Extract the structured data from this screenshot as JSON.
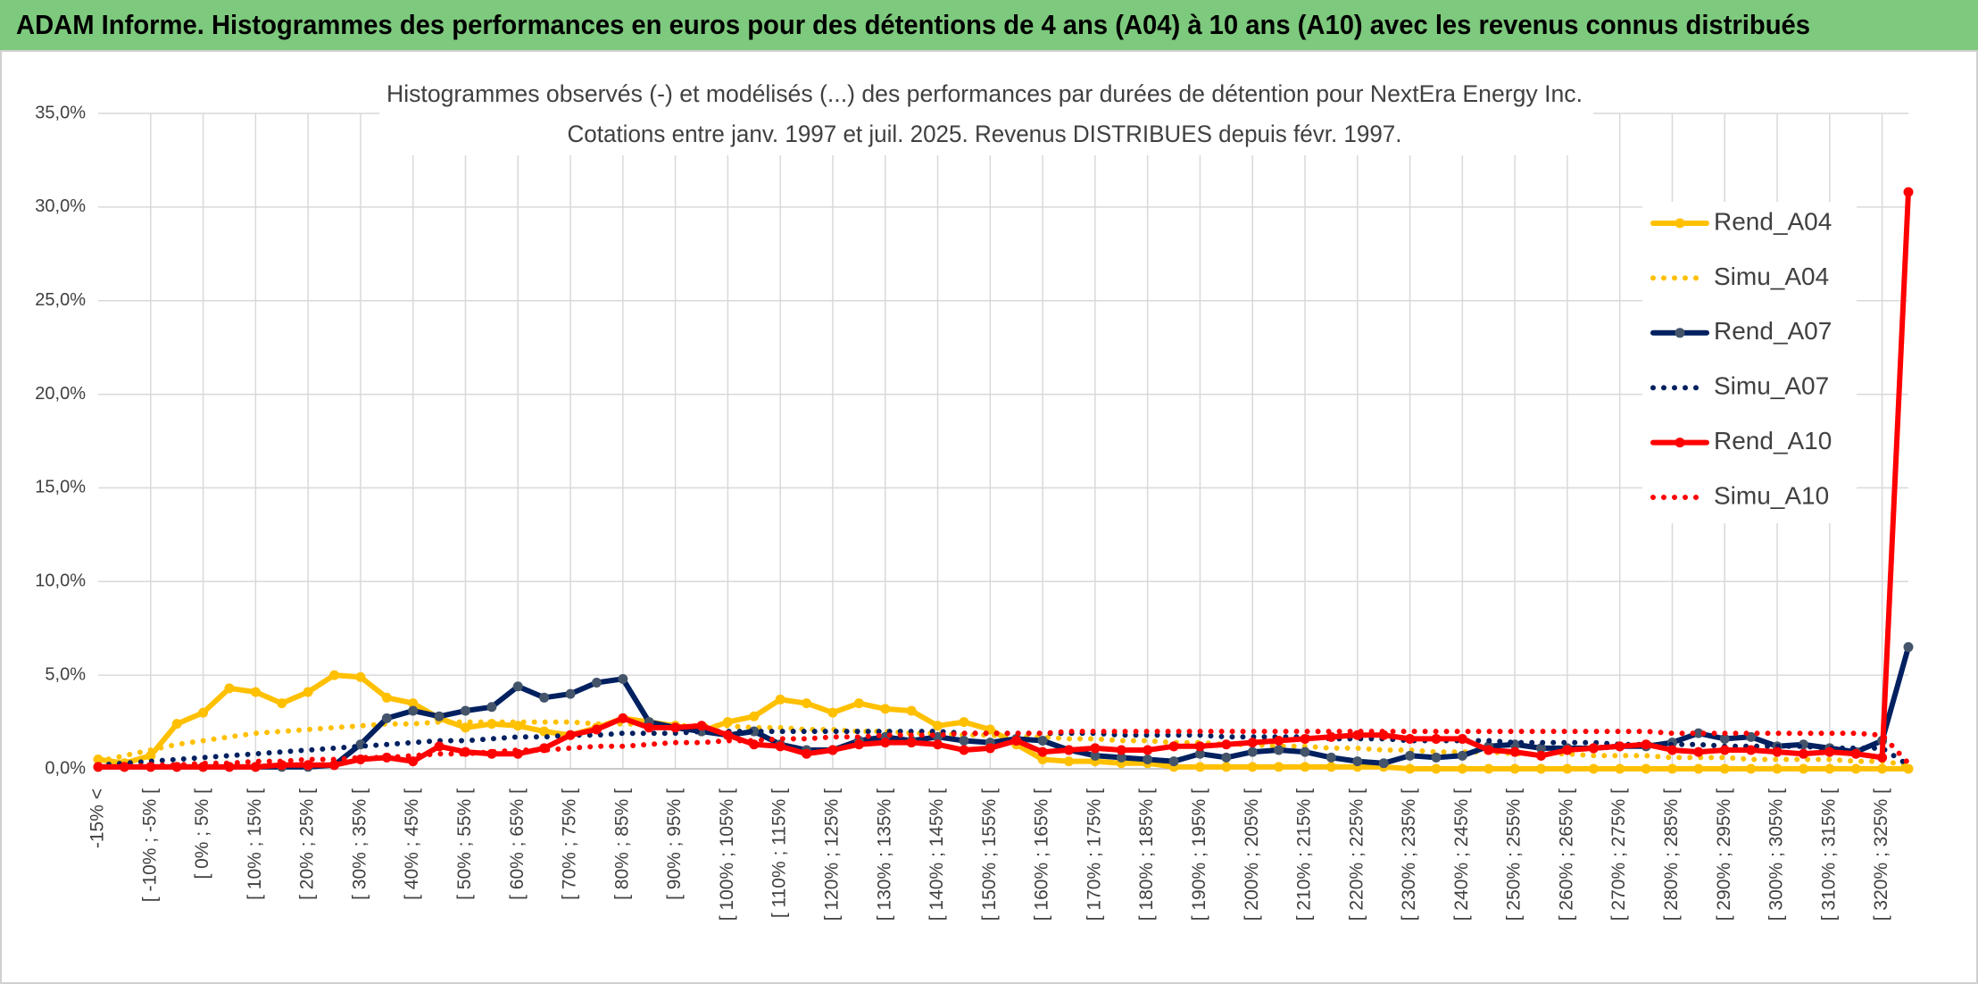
{
  "header": {
    "title": "ADAM Informe. Histogrammes des performances en euros pour des détentions de 4 ans (A04) à 10 ans (A10) avec les revenus connus distribués"
  },
  "chart_data": {
    "type": "line",
    "title": "Histogrammes observés (-) et modélisés (...) des performances par durées de détention pour NextEra Energy Inc.",
    "subtitle": "Cotations entre janv. 1997 et juil. 2025. Revenus DISTRIBUES depuis févr. 1997.",
    "categories": [
      "-15% <",
      null,
      "[ -10% ; -5% [",
      null,
      "[ 0% ; 5% [",
      null,
      "[ 10% ; 15% [",
      null,
      "[ 20% ; 25% [",
      null,
      "[ 30% ; 35% [",
      null,
      "[ 40% ; 45% [",
      null,
      "[ 50% ; 55% [",
      null,
      "[ 60% ; 65% [",
      null,
      "[ 70% ; 75% [",
      null,
      "[ 80% ; 85% [",
      null,
      "[ 90% ; 95% [",
      null,
      "[ 100% ; 105% [",
      null,
      "[ 110% ; 115% [",
      null,
      "[ 120% ; 125% [",
      null,
      "[ 130% ; 135% [",
      null,
      "[ 140% ; 145% [",
      null,
      "[ 150% ; 155% [",
      null,
      "[ 160% ; 165% [",
      null,
      "[ 170% ; 175% [",
      null,
      "[ 180% ; 185% [",
      null,
      "[ 190% ; 195% [",
      null,
      "[ 200% ; 205% [",
      null,
      "[ 210% ; 215% [",
      null,
      "[ 220% ; 225% [",
      null,
      "[ 230% ; 235% [",
      null,
      "[ 240% ; 245% [",
      null,
      "[ 250% ; 255% [",
      null,
      "[ 260% ; 265% [",
      null,
      "[ 270% ; 275% [",
      null,
      "[ 280% ; 285% [",
      null,
      "[ 290% ; 295% [",
      null,
      "[ 300% ; 305% [",
      null,
      "[ 310% ; 315% [",
      null,
      "[ 320% ; 325% [",
      null
    ],
    "series": [
      {
        "name": "Rend_A04",
        "color": "#FFC000",
        "line_style": "solid",
        "marker": true,
        "values": [
          0.5,
          0.3,
          0.7,
          2.4,
          3.0,
          4.3,
          4.1,
          3.5,
          4.1,
          5.0,
          4.9,
          3.8,
          3.5,
          2.7,
          2.2,
          2.4,
          2.3,
          2.0,
          1.8,
          2.2,
          2.7,
          2.5,
          2.3,
          2.0,
          2.5,
          2.8,
          3.7,
          3.5,
          3.0,
          3.5,
          3.2,
          3.1,
          2.3,
          2.5,
          2.1,
          1.3,
          0.5,
          0.4,
          0.4,
          0.3,
          0.3,
          0.1,
          0.1,
          0.1,
          0.1,
          0.1,
          0.1,
          0.1,
          0.1,
          0.1,
          0,
          0,
          0,
          0,
          0,
          0,
          0,
          0,
          0,
          0,
          0,
          0,
          0,
          0,
          0,
          0,
          0,
          0,
          0,
          0
        ]
      },
      {
        "name": "Simu_A04",
        "color": "#FFC000",
        "line_style": "dotted",
        "marker": false,
        "values": [
          0.4,
          0.7,
          1.0,
          1.3,
          1.5,
          1.7,
          1.9,
          2.0,
          2.1,
          2.2,
          2.3,
          2.4,
          2.4,
          2.5,
          2.5,
          2.5,
          2.5,
          2.5,
          2.5,
          2.4,
          2.4,
          2.4,
          2.3,
          2.3,
          2.3,
          2.2,
          2.2,
          2.1,
          2.1,
          2.0,
          2.0,
          1.9,
          1.9,
          1.8,
          1.8,
          1.7,
          1.7,
          1.6,
          1.6,
          1.5,
          1.5,
          1.4,
          1.4,
          1.3,
          1.3,
          1.2,
          1.2,
          1.1,
          1.1,
          1.0,
          1.0,
          0.9,
          0.9,
          0.9,
          0.8,
          0.8,
          0.8,
          0.7,
          0.7,
          0.7,
          0.6,
          0.6,
          0.6,
          0.5,
          0.5,
          0.5,
          0.5,
          0.4,
          0.4,
          0.2
        ]
      },
      {
        "name": "Rend_A07",
        "color": "#002060",
        "line_style": "solid",
        "marker": true,
        "values": [
          0.1,
          0.1,
          0.1,
          0.1,
          0.1,
          0.1,
          0.1,
          0.1,
          0.1,
          0.2,
          1.3,
          2.7,
          3.1,
          2.8,
          3.1,
          3.3,
          4.4,
          3.8,
          4.0,
          4.6,
          4.8,
          2.5,
          2.2,
          2.0,
          1.8,
          2.0,
          1.3,
          1.0,
          1.0,
          1.5,
          1.7,
          1.5,
          1.7,
          1.5,
          1.4,
          1.6,
          1.5,
          1.0,
          0.7,
          0.6,
          0.5,
          0.4,
          0.8,
          0.6,
          0.9,
          1.0,
          0.9,
          0.6,
          0.4,
          0.3,
          0.7,
          0.6,
          0.7,
          1.2,
          1.3,
          1.1,
          1.1,
          1.1,
          1.2,
          1.2,
          1.4,
          1.9,
          1.6,
          1.7,
          1.2,
          1.3,
          1.1,
          0.9,
          1.5,
          6.5
        ]
      },
      {
        "name": "Simu_A07",
        "color": "#002060",
        "line_style": "dotted",
        "marker": false,
        "values": [
          0.2,
          0.3,
          0.4,
          0.5,
          0.6,
          0.7,
          0.8,
          0.9,
          1.0,
          1.1,
          1.2,
          1.3,
          1.4,
          1.5,
          1.5,
          1.6,
          1.7,
          1.7,
          1.8,
          1.8,
          1.9,
          1.9,
          1.9,
          2.0,
          2.0,
          2.0,
          2.0,
          2.0,
          2.0,
          2.0,
          2.0,
          2.0,
          2.0,
          1.9,
          1.9,
          1.9,
          1.9,
          1.9,
          1.9,
          1.8,
          1.8,
          1.8,
          1.8,
          1.7,
          1.7,
          1.7,
          1.7,
          1.6,
          1.6,
          1.6,
          1.5,
          1.5,
          1.5,
          1.5,
          1.4,
          1.4,
          1.4,
          1.4,
          1.3,
          1.3,
          1.3,
          1.3,
          1.2,
          1.2,
          1.2,
          1.2,
          1.1,
          1.1,
          1.1,
          0.2
        ]
      },
      {
        "name": "Rend_A10",
        "color": "#FF0000",
        "line_style": "solid",
        "marker": true,
        "values": [
          0.1,
          0.1,
          0.1,
          0.1,
          0.1,
          0.1,
          0.1,
          0.2,
          0.2,
          0.2,
          0.5,
          0.6,
          0.4,
          1.2,
          0.9,
          0.8,
          0.8,
          1.1,
          1.8,
          2.1,
          2.7,
          2.2,
          2.2,
          2.3,
          1.8,
          1.3,
          1.2,
          0.8,
          1.0,
          1.3,
          1.4,
          1.4,
          1.3,
          1.0,
          1.1,
          1.5,
          0.9,
          1.0,
          1.1,
          1.0,
          1.0,
          1.2,
          1.2,
          1.3,
          1.4,
          1.5,
          1.6,
          1.7,
          1.8,
          1.8,
          1.6,
          1.6,
          1.6,
          1.0,
          0.9,
          0.7,
          1.0,
          1.1,
          1.2,
          1.3,
          1.0,
          0.9,
          1.0,
          1.0,
          0.9,
          0.8,
          0.9,
          0.8,
          0.6,
          30.8
        ]
      },
      {
        "name": "Simu_A10",
        "color": "#FF0000",
        "line_style": "dotted",
        "marker": false,
        "values": [
          0.1,
          0.1,
          0.2,
          0.2,
          0.3,
          0.3,
          0.4,
          0.4,
          0.5,
          0.5,
          0.6,
          0.6,
          0.7,
          0.8,
          0.8,
          0.9,
          1.0,
          1.0,
          1.1,
          1.2,
          1.2,
          1.3,
          1.4,
          1.4,
          1.5,
          1.5,
          1.6,
          1.6,
          1.7,
          1.7,
          1.8,
          1.8,
          1.8,
          1.9,
          1.9,
          1.9,
          1.9,
          2.0,
          2.0,
          2.0,
          2.0,
          2.0,
          2.0,
          2.0,
          2.0,
          2.0,
          2.0,
          2.0,
          2.0,
          2.0,
          2.0,
          2.0,
          2.0,
          2.0,
          2.0,
          2.0,
          2.0,
          2.0,
          2.0,
          2.0,
          1.9,
          1.9,
          1.9,
          1.9,
          1.9,
          1.9,
          1.9,
          1.9,
          1.8,
          0.3
        ]
      }
    ],
    "ylim": [
      0,
      35
    ],
    "yticks": [
      {
        "value": 0,
        "label": "0,0%"
      },
      {
        "value": 5,
        "label": "5,0%"
      },
      {
        "value": 10,
        "label": "10,0%"
      },
      {
        "value": 15,
        "label": "15,0%"
      },
      {
        "value": 20,
        "label": "20,0%"
      },
      {
        "value": 25,
        "label": "25,0%"
      },
      {
        "value": 30,
        "label": "30,0%"
      },
      {
        "value": 35,
        "label": "35,0%"
      }
    ],
    "grid": true,
    "legend": "right"
  }
}
